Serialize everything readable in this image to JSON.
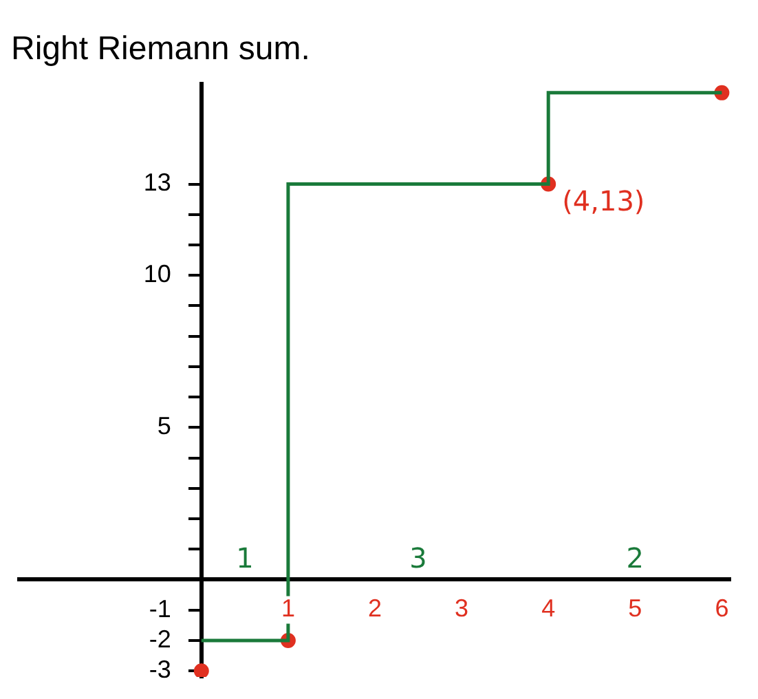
{
  "chart_data": {
    "type": "step",
    "title": "Right Riemann sum.",
    "series": [
      {
        "color": "#1a7a3a",
        "x": [
          0,
          1,
          4,
          6
        ],
        "values": [
          -2,
          13,
          16,
          16
        ],
        "marker": "none"
      },
      {
        "type": "scatter",
        "color": "#e03020",
        "x": [
          0,
          1,
          4,
          6
        ],
        "values": [
          -3,
          -2,
          13,
          16
        ],
        "marker": "circle"
      }
    ],
    "xlim": [
      -2.1,
      6.1
    ],
    "ylim": [
      -3.2,
      16.3
    ],
    "xticks": [
      1,
      2,
      3,
      4,
      5,
      6
    ],
    "yticks": [
      -3,
      -2,
      -1,
      {
        "value": 1,
        "label": null
      },
      {
        "value": 2,
        "label": null
      },
      {
        "value": 3,
        "label": null
      },
      {
        "value": 4,
        "label": null
      },
      5,
      {
        "value": 6,
        "label": null
      },
      {
        "value": 7,
        "label": null
      },
      {
        "value": 8,
        "label": null
      },
      {
        "value": 9,
        "label": null
      },
      10,
      {
        "value": 11,
        "label": null
      },
      {
        "value": 12,
        "label": null
      },
      13
    ],
    "annotations": [
      "1",
      "3",
      "2",
      {
        "text": "(4,13)",
        "x": 4,
        "y": 13
      }
    ],
    "grid": false,
    "legend": false
  }
}
